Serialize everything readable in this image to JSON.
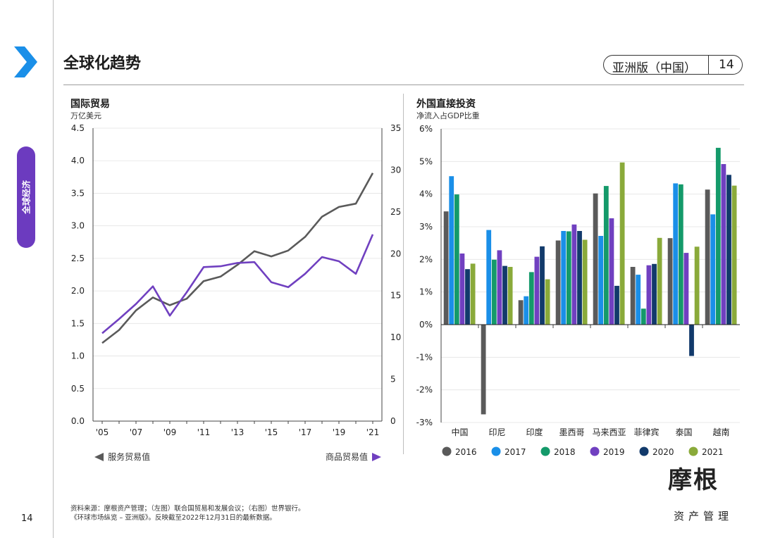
{
  "header": {
    "title": "全球化趋势",
    "edition": "亚洲版（中国）",
    "page": "14"
  },
  "sidebar": {
    "section_label": "全球经济",
    "page_number": "14"
  },
  "left_chart": {
    "title": "国际贸易",
    "subtitle": "万亿美元",
    "legend_left": "服务贸易值",
    "legend_right": "商品贸易值"
  },
  "right_chart": {
    "title": "外国直接投资",
    "subtitle": "净流入占GDP比重"
  },
  "footer": {
    "source_line1": "资料来源：摩根资产管理；（左图）联合国贸易和发展会议；（右图）世界银行。",
    "source_line2": "《环球市场纵览 – 亚洲版》。反映截至2022年12月31日的最新数据。"
  },
  "logo": {
    "text": "摩根",
    "sub": "资产管理"
  },
  "colors": {
    "services": "#5a5a5a",
    "goods": "#7040c0",
    "accent": "#1a8fe8",
    "tab": "#6c3bbf"
  },
  "chart_data": [
    {
      "type": "line",
      "title": "国际贸易",
      "ylabel": "万亿美元",
      "x": [
        2005,
        2006,
        2007,
        2008,
        2009,
        2010,
        2011,
        2012,
        2013,
        2014,
        2015,
        2016,
        2017,
        2018,
        2019,
        2020,
        2021
      ],
      "xticks": [
        "'05",
        "'07",
        "'09",
        "'11",
        "'13",
        "'15",
        "'17",
        "'19",
        "'21"
      ],
      "xtick_years": [
        2005,
        2007,
        2009,
        2011,
        2013,
        2015,
        2017,
        2019,
        2021
      ],
      "ylim_left": [
        0,
        4.5
      ],
      "yticks_left": [
        "0.0",
        "0.5",
        "1.0",
        "1.5",
        "2.0",
        "2.5",
        "3.0",
        "3.5",
        "4.0",
        "4.5"
      ],
      "ylim_right": [
        0,
        35
      ],
      "yticks_right": [
        "0",
        "5",
        "10",
        "15",
        "20",
        "25",
        "30",
        "35"
      ],
      "grid": true,
      "series": [
        {
          "name": "服务贸易值",
          "axis": "left",
          "color": "#5a5a5a",
          "values": [
            1.2,
            1.4,
            1.7,
            1.9,
            1.78,
            1.88,
            2.15,
            2.22,
            2.4,
            2.61,
            2.53,
            2.62,
            2.83,
            3.14,
            3.29,
            3.34,
            3.81
          ]
        },
        {
          "name": "商品贸易值",
          "axis": "right",
          "color": "#7040c0",
          "values": [
            10.5,
            12.2,
            14.0,
            16.1,
            12.6,
            15.4,
            18.4,
            18.5,
            18.9,
            19.0,
            16.6,
            16.0,
            17.6,
            19.6,
            19.1,
            17.6,
            22.3
          ]
        }
      ]
    },
    {
      "type": "bar",
      "title": "外国直接投资",
      "ylabel": "净流入占GDP比重",
      "categories": [
        "中国",
        "印尼",
        "印度",
        "墨西哥",
        "马来西亚",
        "菲律宾",
        "泰国",
        "越南"
      ],
      "ylim": [
        -3,
        6
      ],
      "yticks": [
        "-3%",
        "-2%",
        "-1%",
        "0%",
        "1%",
        "2%",
        "3%",
        "4%",
        "5%",
        "6%"
      ],
      "legend_position": "bottom",
      "series": [
        {
          "name": "2016",
          "color": "#5a5a5a",
          "values": [
            3.47,
            -2.75,
            0.75,
            2.58,
            4.02,
            1.77,
            2.65,
            4.14
          ]
        },
        {
          "name": "2017",
          "color": "#1a8fe8",
          "values": [
            4.55,
            2.9,
            0.87,
            2.87,
            2.72,
            1.53,
            4.33,
            3.38
          ]
        },
        {
          "name": "2018",
          "color": "#149a6a",
          "values": [
            3.99,
            1.99,
            1.61,
            2.86,
            4.25,
            0.49,
            4.3,
            5.42
          ]
        },
        {
          "name": "2019",
          "color": "#7040c0",
          "values": [
            2.18,
            2.28,
            2.08,
            3.07,
            3.26,
            1.82,
            2.2,
            4.92
          ]
        },
        {
          "name": "2020",
          "color": "#123a6b",
          "values": [
            1.7,
            1.8,
            2.4,
            2.87,
            1.19,
            1.86,
            -0.96,
            4.59
          ]
        },
        {
          "name": "2021",
          "color": "#8aaa3a",
          "values": [
            1.87,
            1.77,
            1.39,
            2.6,
            4.97,
            2.66,
            2.39,
            4.26
          ]
        }
      ]
    }
  ]
}
